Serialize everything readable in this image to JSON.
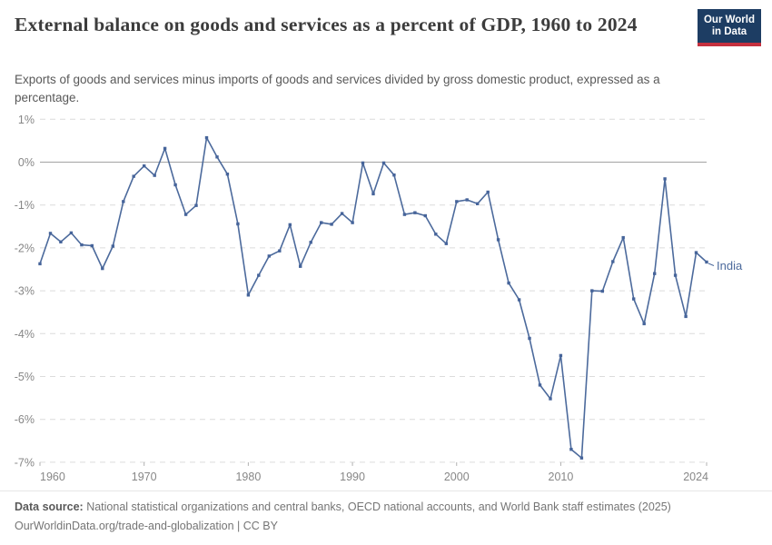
{
  "header": {
    "title": "External balance on goods and services as a percent of GDP, 1960 to 2024",
    "subtitle": "Exports of goods and services minus imports of goods and services divided by gross domestic product, expressed as a percentage.",
    "logo_line1": "Our World",
    "logo_line2": "in Data"
  },
  "footer": {
    "datasource_label": "Data source:",
    "datasource_text": " National statistical organizations and central banks, OECD national accounts, and World Bank staff estimates (2025)",
    "link_text": "OurWorldinData.org/trade-and-globalization | CC BY"
  },
  "colors": {
    "line": "#4c6a9c",
    "marker": "#46649a",
    "grid_dashed": "#dcdcdc",
    "grid_zero": "#a3a3a3",
    "axis_text": "#878787",
    "tick": "#b0b0b0",
    "logo_navy": "#1d3d63",
    "logo_red": "#c5303e"
  },
  "chart_data": {
    "type": "line",
    "title": "External balance on goods and services as a percent of GDP, 1960 to 2024",
    "xlabel": "",
    "ylabel": "",
    "xlim": [
      1960,
      2024
    ],
    "ylim": [
      -7,
      1
    ],
    "x_ticks": [
      1960,
      1970,
      1980,
      1990,
      2000,
      2010,
      2024
    ],
    "y_ticks": [
      1,
      0,
      -1,
      -2,
      -3,
      -4,
      -5,
      -6,
      -7
    ],
    "y_tick_suffix": "%",
    "grid": "horizontal dashed, solid line at 0%",
    "legend_position": "end-of-line label",
    "end_label": "India",
    "series": [
      {
        "name": "India",
        "color": "#4c6a9c",
        "x": [
          1960,
          1961,
          1962,
          1963,
          1964,
          1965,
          1966,
          1967,
          1968,
          1969,
          1970,
          1971,
          1972,
          1973,
          1974,
          1975,
          1976,
          1977,
          1978,
          1979,
          1980,
          1981,
          1982,
          1983,
          1984,
          1985,
          1986,
          1987,
          1988,
          1989,
          1990,
          1991,
          1992,
          1993,
          1994,
          1995,
          1996,
          1997,
          1998,
          1999,
          2000,
          2001,
          2002,
          2003,
          2004,
          2005,
          2006,
          2007,
          2008,
          2009,
          2010,
          2011,
          2012,
          2013,
          2014,
          2015,
          2016,
          2017,
          2018,
          2019,
          2020,
          2021,
          2022,
          2023,
          2024
        ],
        "y": [
          -2.37,
          -1.66,
          -1.86,
          -1.65,
          -1.93,
          -1.95,
          -2.48,
          -1.96,
          -0.92,
          -0.33,
          -0.09,
          -0.31,
          0.32,
          -0.53,
          -1.22,
          -1.01,
          0.57,
          0.12,
          -0.28,
          -1.44,
          -3.1,
          -2.64,
          -2.19,
          -2.07,
          -1.46,
          -2.43,
          -1.87,
          -1.41,
          -1.45,
          -1.2,
          -1.41,
          -0.02,
          -0.74,
          -0.02,
          -0.3,
          -1.22,
          -1.18,
          -1.25,
          -1.68,
          -1.9,
          -0.92,
          -0.88,
          -0.97,
          -0.7,
          -1.81,
          -2.82,
          -3.21,
          -4.11,
          -5.2,
          -5.52,
          -4.51,
          -6.7,
          -6.9,
          -3.0,
          -3.01,
          -2.32,
          -1.76,
          -3.19,
          -3.77,
          -2.6,
          -0.39,
          -2.64,
          -3.6,
          -2.11,
          -2.33
        ]
      }
    ]
  }
}
